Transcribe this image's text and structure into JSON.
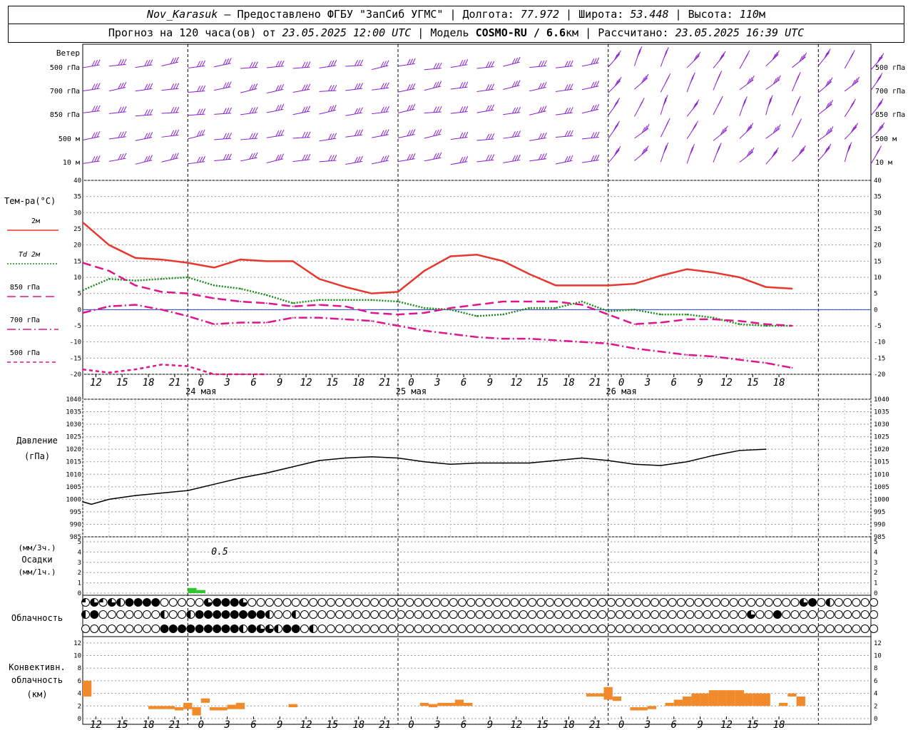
{
  "header": {
    "station": "Nov_Karasuk",
    "provider": "Предоставлено ФГБУ \"ЗапСиб УГМС\"",
    "lon_label": "Долгота:",
    "lon": "77.972",
    "lat_label": "Широта:",
    "lat": "53.448",
    "alt_label": "Высота:",
    "alt": "110",
    "alt_unit": "м",
    "forecast_label": "Прогноз на 120 часа(ов) от",
    "init_time": "23.05.2025 12:00 UTC",
    "model_label": "Модель",
    "model": "COSMO-RU / 6.6",
    "model_unit": "км",
    "calc_label": "Рассчитано:",
    "calc_time": "23.05.2025 16:39 UTC"
  },
  "chart_data": [
    {
      "type": "wind-barbs",
      "title": "Ветер",
      "levels": [
        "500 гПа",
        "700 гПа",
        "850 гПа",
        "500 м",
        "10 м"
      ],
      "color": "#8a1fd0"
    },
    {
      "type": "line",
      "title": "Тем-ра(°C)",
      "ylim": [
        -20,
        40
      ],
      "yticks": [
        40,
        35,
        30,
        25,
        20,
        15,
        10,
        5,
        0,
        -5,
        -10,
        -15,
        -20
      ],
      "x_hours": [
        0,
        3,
        6,
        9,
        12,
        15,
        18,
        21,
        24,
        27,
        30,
        33,
        36,
        39,
        42,
        45,
        48,
        51,
        54,
        57,
        60,
        63,
        66,
        69,
        72,
        75,
        78,
        81,
        84,
        87,
        90
      ],
      "series": [
        {
          "name": "2м",
          "color": "#e8372e",
          "dash": "solid",
          "values": [
            27,
            20,
            16,
            15.5,
            14.5,
            13,
            15.5,
            15,
            15,
            9.5,
            7,
            5,
            5.5,
            12,
            16.5,
            17,
            15,
            11,
            7.5,
            7.5,
            7.5,
            8,
            10.5,
            12.5,
            11.5,
            10,
            7,
            6.5,
            null,
            null,
            null
          ]
        },
        {
          "name": "Td 2м",
          "color": "#1a8a1a",
          "dash": "dot",
          "values": [
            6,
            9.5,
            9,
            9.5,
            10,
            7.5,
            6.5,
            4.5,
            2,
            3,
            3,
            3,
            2.5,
            0.5,
            0,
            -2,
            -1.5,
            0.5,
            0.5,
            2.5,
            -0.5,
            0,
            -1.5,
            -1.5,
            -2.5,
            -4.5,
            -5,
            -5,
            null,
            null,
            null
          ]
        },
        {
          "name": "850 гПа",
          "color": "#e0148c",
          "dash": "long-dash",
          "values": [
            14.5,
            12,
            7.5,
            5.5,
            5,
            3.5,
            2.5,
            2,
            1,
            1.5,
            1,
            -1,
            -1.5,
            -1,
            0.5,
            1.5,
            2.5,
            2.5,
            2.5,
            1.5,
            -1.5,
            -4.5,
            -4,
            -3,
            -3,
            -3.5,
            -4.5,
            -5,
            null,
            null,
            null
          ]
        },
        {
          "name": "700 гПа",
          "color": "#e0148c",
          "dash": "dash-dot",
          "values": [
            -1,
            1,
            1.5,
            0,
            -2,
            -4.5,
            -4,
            -4,
            -2.5,
            -2.5,
            -3,
            -3.5,
            -5,
            -6.5,
            -7.5,
            -8.5,
            -9,
            -9,
            -9.5,
            -10,
            -10.5,
            -12,
            -13,
            -14,
            -14.5,
            -15.5,
            -16.5,
            -18,
            null,
            null,
            null
          ]
        },
        {
          "name": "500 гПа",
          "color": "#e0148c",
          "dash": "short-dash",
          "values": [
            -18.5,
            -19.5,
            -18.5,
            -17,
            -17.5,
            -20,
            -20,
            -20,
            null,
            null,
            null,
            null,
            null,
            null,
            null,
            null,
            null,
            null,
            null,
            null,
            null,
            null,
            null,
            null,
            null,
            null,
            null,
            null,
            null,
            null,
            null
          ]
        }
      ]
    },
    {
      "type": "line",
      "title": "Давление",
      "unit": "(гПа)",
      "ylim": [
        985,
        1040
      ],
      "yticks": [
        1040,
        1035,
        1030,
        1025,
        1020,
        1015,
        1010,
        1005,
        1000,
        995,
        990,
        985
      ],
      "x_hours": [
        0,
        1,
        2,
        3,
        6,
        9,
        12,
        15,
        18,
        21,
        24,
        27,
        30,
        33,
        36,
        39,
        42,
        45,
        48,
        51,
        54,
        57,
        60,
        63,
        66,
        69,
        72,
        75,
        78
      ],
      "series": [
        {
          "name": "",
          "color": "#000000",
          "values": [
            999,
            998,
            999,
            1000,
            1001.5,
            1002.5,
            1003.5,
            1006,
            1008.5,
            1010.5,
            1013,
            1015.5,
            1016.5,
            1017,
            1016.5,
            1015,
            1014,
            1014.5,
            1014.5,
            1014.5,
            1015.5,
            1016.5,
            1015.5,
            1014,
            1013.5,
            1015,
            1017.5,
            1019.5,
            1020
          ]
        }
      ]
    },
    {
      "type": "bar",
      "title": "Осадки",
      "units": [
        "(мм/3ч.)",
        "(мм/1ч.)"
      ],
      "ylim": [
        0,
        5
      ],
      "yticks": [
        5,
        4,
        3,
        2,
        1,
        0
      ],
      "annotation": "0.5",
      "color": "#2ec82e",
      "x_hours": [
        12,
        13
      ],
      "values": [
        0.5,
        0.3
      ]
    },
    {
      "type": "symbols",
      "title": "Облачность",
      "rows": [
        "QDQDHFFFFOOOOODFFFDOOOOOOOOOOOOOOOOOOOOOOOOOOOOOOOOOOOOOOOOOOOOOOOOOOOOOOOOOOOOOOODFOHOOOOOOOOOOOOOOOOOOOOOOOO",
        "HFOOOOOOOHOOHFFFFFFFFHOOHOOOOOOOOOOOOOOOOOOOOOOOOOOOOOOOOOOOOOOOOOOOOOOOOOOODOOFOOOOOOOOOOOOOOOOOOOOOFFFFOOOOOOOFFFOOOOOOOHOFF",
        "OOOOOOOOOFFFFFFFFFHFDDHFFOHOOOOOOOOOOOOOOOOOOOOOOOOOOOOOOOOOOOOOOOOOOOOOOOOOOOOOOOOOOOOOOOOOOOOOOOOOOOOOOOOOOOOOOOOOOO"
      ]
    },
    {
      "type": "bar",
      "title": "Конвективн. облачность",
      "unit": "(км)",
      "ylim": [
        0,
        13
      ],
      "yticks": [
        12,
        10,
        8,
        6,
        4,
        2,
        0
      ],
      "color": "#f08a2a",
      "bars": [
        {
          "x": 0.5,
          "bottom": 3.5,
          "top": 6
        },
        {
          "x": 8,
          "bottom": 1.5,
          "top": 2
        },
        {
          "x": 9,
          "bottom": 1.5,
          "top": 2
        },
        {
          "x": 10,
          "bottom": 1.5,
          "top": 2
        },
        {
          "x": 11,
          "bottom": 1.3,
          "top": 1.8
        },
        {
          "x": 12,
          "bottom": 1.5,
          "top": 2.5
        },
        {
          "x": 13,
          "bottom": 0.5,
          "top": 1.8
        },
        {
          "x": 14,
          "bottom": 2.5,
          "top": 3.2
        },
        {
          "x": 15,
          "bottom": 1.3,
          "top": 1.8
        },
        {
          "x": 16,
          "bottom": 1.3,
          "top": 1.8
        },
        {
          "x": 17,
          "bottom": 1.5,
          "top": 2.2
        },
        {
          "x": 18,
          "bottom": 1.5,
          "top": 2.5
        },
        {
          "x": 24,
          "bottom": 1.8,
          "top": 2.3
        },
        {
          "x": 39,
          "bottom": 2,
          "top": 2.5
        },
        {
          "x": 40,
          "bottom": 1.8,
          "top": 2.3
        },
        {
          "x": 41,
          "bottom": 2,
          "top": 2.5
        },
        {
          "x": 42,
          "bottom": 2,
          "top": 2.5
        },
        {
          "x": 43,
          "bottom": 2,
          "top": 3
        },
        {
          "x": 44,
          "bottom": 2,
          "top": 2.5
        },
        {
          "x": 58,
          "bottom": 3.5,
          "top": 4
        },
        {
          "x": 59,
          "bottom": 3.5,
          "top": 4
        },
        {
          "x": 60,
          "bottom": 3,
          "top": 5
        },
        {
          "x": 61,
          "bottom": 2.8,
          "top": 3.5
        },
        {
          "x": 63,
          "bottom": 1.3,
          "top": 1.8
        },
        {
          "x": 64,
          "bottom": 1.3,
          "top": 1.8
        },
        {
          "x": 65,
          "bottom": 1.5,
          "top": 2
        },
        {
          "x": 67,
          "bottom": 2,
          "top": 2.5
        },
        {
          "x": 68,
          "bottom": 2,
          "top": 3
        },
        {
          "x": 69,
          "bottom": 2,
          "top": 3.5
        },
        {
          "x": 70,
          "bottom": 2,
          "top": 4
        },
        {
          "x": 71,
          "bottom": 2,
          "top": 4
        },
        {
          "x": 72,
          "bottom": 2,
          "top": 4.5
        },
        {
          "x": 73,
          "bottom": 2,
          "top": 4.5
        },
        {
          "x": 74,
          "bottom": 2,
          "top": 4.5
        },
        {
          "x": 75,
          "bottom": 2,
          "top": 4.5
        },
        {
          "x": 76,
          "bottom": 2,
          "top": 4
        },
        {
          "x": 77,
          "bottom": 2,
          "top": 4
        },
        {
          "x": 78,
          "bottom": 2,
          "top": 4
        },
        {
          "x": 80,
          "bottom": 2,
          "top": 2.5
        },
        {
          "x": 81,
          "bottom": 3.5,
          "top": 4
        },
        {
          "x": 82,
          "bottom": 2,
          "top": 3.5
        }
      ]
    }
  ],
  "axis": {
    "hour_labels": [
      "12",
      "15",
      "18",
      "21",
      "0",
      "3",
      "6",
      "9",
      "12",
      "15",
      "18",
      "21",
      "0",
      "3",
      "6",
      "9",
      "12",
      "15",
      "18",
      "21",
      "0",
      "3",
      "6",
      "9",
      "12",
      "15",
      "18"
    ],
    "date_labels": [
      "24 мая",
      "25 мая",
      "26 мая"
    ]
  }
}
